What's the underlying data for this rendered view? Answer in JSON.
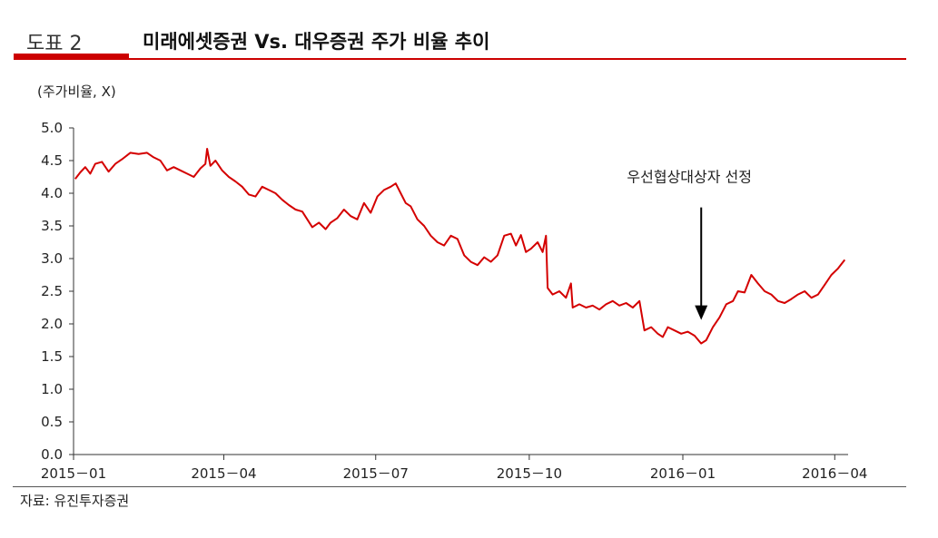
{
  "header": {
    "figure_label": "도표 2",
    "title": "미래에셋증권 Vs. 대우증권 주가 비율 추이"
  },
  "unit_label": "(주가비율, X)",
  "source": "자료: 유진투자증권",
  "colors": {
    "accent": "#cc0000",
    "line": "#d40000"
  },
  "chart_data": {
    "type": "line",
    "title": "미래에셋증권 Vs. 대우증권 주가 비율 추이",
    "ylabel": "(주가비율, X)",
    "xlabel": "",
    "ylim": [
      0,
      5
    ],
    "yticks": [
      "0.0",
      "0.5",
      "1.0",
      "1.5",
      "2.0",
      "2.5",
      "3.0",
      "3.5",
      "4.0",
      "4.5",
      "5.0"
    ],
    "xlim": [
      "2015-01-01",
      "2016-04-09"
    ],
    "xticks": [
      {
        "date": "2015-01-01",
        "label": "2015－01"
      },
      {
        "date": "2015-04-01",
        "label": "2015－04"
      },
      {
        "date": "2015-07-01",
        "label": "2015－07"
      },
      {
        "date": "2015-10-01",
        "label": "2015－10"
      },
      {
        "date": "2016-01-01",
        "label": "2016－01"
      },
      {
        "date": "2016-04-01",
        "label": "2016－04"
      }
    ],
    "grid": false,
    "series": [
      {
        "values": [
          [
            "2015-01-02",
            4.22
          ],
          [
            "2015-01-05",
            4.32
          ],
          [
            "2015-01-08",
            4.4
          ],
          [
            "2015-01-11",
            4.3
          ],
          [
            "2015-01-14",
            4.45
          ],
          [
            "2015-01-18",
            4.48
          ],
          [
            "2015-01-22",
            4.33
          ],
          [
            "2015-01-26",
            4.45
          ],
          [
            "2015-01-30",
            4.52
          ],
          [
            "2015-02-04",
            4.62
          ],
          [
            "2015-02-09",
            4.6
          ],
          [
            "2015-02-14",
            4.62
          ],
          [
            "2015-02-18",
            4.55
          ],
          [
            "2015-02-22",
            4.5
          ],
          [
            "2015-02-26",
            4.35
          ],
          [
            "2015-03-02",
            4.4
          ],
          [
            "2015-03-06",
            4.35
          ],
          [
            "2015-03-10",
            4.3
          ],
          [
            "2015-03-14",
            4.25
          ],
          [
            "2015-03-18",
            4.38
          ],
          [
            "2015-03-21",
            4.45
          ],
          [
            "2015-03-22",
            4.68
          ],
          [
            "2015-03-24",
            4.42
          ],
          [
            "2015-03-27",
            4.5
          ],
          [
            "2015-03-31",
            4.35
          ],
          [
            "2015-04-04",
            4.25
          ],
          [
            "2015-04-08",
            4.18
          ],
          [
            "2015-04-12",
            4.1
          ],
          [
            "2015-04-16",
            3.98
          ],
          [
            "2015-04-20",
            3.95
          ],
          [
            "2015-04-24",
            4.1
          ],
          [
            "2015-04-28",
            4.05
          ],
          [
            "2015-05-02",
            4.0
          ],
          [
            "2015-05-06",
            3.9
          ],
          [
            "2015-05-10",
            3.82
          ],
          [
            "2015-05-14",
            3.75
          ],
          [
            "2015-05-18",
            3.72
          ],
          [
            "2015-05-21",
            3.6
          ],
          [
            "2015-05-24",
            3.48
          ],
          [
            "2015-05-28",
            3.55
          ],
          [
            "2015-06-01",
            3.45
          ],
          [
            "2015-06-04",
            3.55
          ],
          [
            "2015-06-08",
            3.62
          ],
          [
            "2015-06-12",
            3.75
          ],
          [
            "2015-06-16",
            3.65
          ],
          [
            "2015-06-20",
            3.6
          ],
          [
            "2015-06-24",
            3.85
          ],
          [
            "2015-06-28",
            3.7
          ],
          [
            "2015-07-02",
            3.95
          ],
          [
            "2015-07-06",
            4.05
          ],
          [
            "2015-07-10",
            4.1
          ],
          [
            "2015-07-13",
            4.15
          ],
          [
            "2015-07-16",
            4.0
          ],
          [
            "2015-07-19",
            3.85
          ],
          [
            "2015-07-22",
            3.8
          ],
          [
            "2015-07-26",
            3.6
          ],
          [
            "2015-07-30",
            3.5
          ],
          [
            "2015-08-03",
            3.35
          ],
          [
            "2015-08-07",
            3.25
          ],
          [
            "2015-08-11",
            3.2
          ],
          [
            "2015-08-15",
            3.35
          ],
          [
            "2015-08-19",
            3.3
          ],
          [
            "2015-08-23",
            3.05
          ],
          [
            "2015-08-27",
            2.95
          ],
          [
            "2015-08-31",
            2.9
          ],
          [
            "2015-09-04",
            3.02
          ],
          [
            "2015-09-08",
            2.95
          ],
          [
            "2015-09-12",
            3.05
          ],
          [
            "2015-09-16",
            3.35
          ],
          [
            "2015-09-20",
            3.38
          ],
          [
            "2015-09-23",
            3.2
          ],
          [
            "2015-09-26",
            3.36
          ],
          [
            "2015-09-29",
            3.1
          ],
          [
            "2015-10-02",
            3.15
          ],
          [
            "2015-10-06",
            3.25
          ],
          [
            "2015-10-09",
            3.1
          ],
          [
            "2015-10-11",
            3.35
          ],
          [
            "2015-10-12",
            2.55
          ],
          [
            "2015-10-15",
            2.45
          ],
          [
            "2015-10-19",
            2.5
          ],
          [
            "2015-10-23",
            2.4
          ],
          [
            "2015-10-26",
            2.62
          ],
          [
            "2015-10-27",
            2.25
          ],
          [
            "2015-10-31",
            2.3
          ],
          [
            "2015-11-04",
            2.25
          ],
          [
            "2015-11-08",
            2.28
          ],
          [
            "2015-11-12",
            2.22
          ],
          [
            "2015-11-16",
            2.3
          ],
          [
            "2015-11-20",
            2.35
          ],
          [
            "2015-11-24",
            2.28
          ],
          [
            "2015-11-28",
            2.32
          ],
          [
            "2015-12-02",
            2.25
          ],
          [
            "2015-12-06",
            2.35
          ],
          [
            "2015-12-09",
            1.9
          ],
          [
            "2015-12-13",
            1.95
          ],
          [
            "2015-12-17",
            1.85
          ],
          [
            "2015-12-20",
            1.8
          ],
          [
            "2015-12-23",
            1.95
          ],
          [
            "2015-12-27",
            1.9
          ],
          [
            "2015-12-31",
            1.85
          ],
          [
            "2016-01-04",
            1.88
          ],
          [
            "2016-01-08",
            1.82
          ],
          [
            "2016-01-12",
            1.7
          ],
          [
            "2016-01-15",
            1.75
          ],
          [
            "2016-01-19",
            1.95
          ],
          [
            "2016-01-23",
            2.1
          ],
          [
            "2016-01-27",
            2.3
          ],
          [
            "2016-01-31",
            2.35
          ],
          [
            "2016-02-03",
            2.5
          ],
          [
            "2016-02-07",
            2.48
          ],
          [
            "2016-02-11",
            2.75
          ],
          [
            "2016-02-15",
            2.62
          ],
          [
            "2016-02-19",
            2.5
          ],
          [
            "2016-02-23",
            2.45
          ],
          [
            "2016-02-27",
            2.35
          ],
          [
            "2016-03-02",
            2.32
          ],
          [
            "2016-03-06",
            2.38
          ],
          [
            "2016-03-10",
            2.45
          ],
          [
            "2016-03-14",
            2.5
          ],
          [
            "2016-03-18",
            2.4
          ],
          [
            "2016-03-22",
            2.45
          ],
          [
            "2016-03-26",
            2.6
          ],
          [
            "2016-03-30",
            2.75
          ],
          [
            "2016-04-03",
            2.85
          ],
          [
            "2016-04-07",
            2.98
          ]
        ]
      }
    ],
    "annotations": [
      {
        "text": "우선협상대상자 선정",
        "date": "2016-01-12",
        "y": 1.7,
        "arrow": "down"
      }
    ]
  }
}
